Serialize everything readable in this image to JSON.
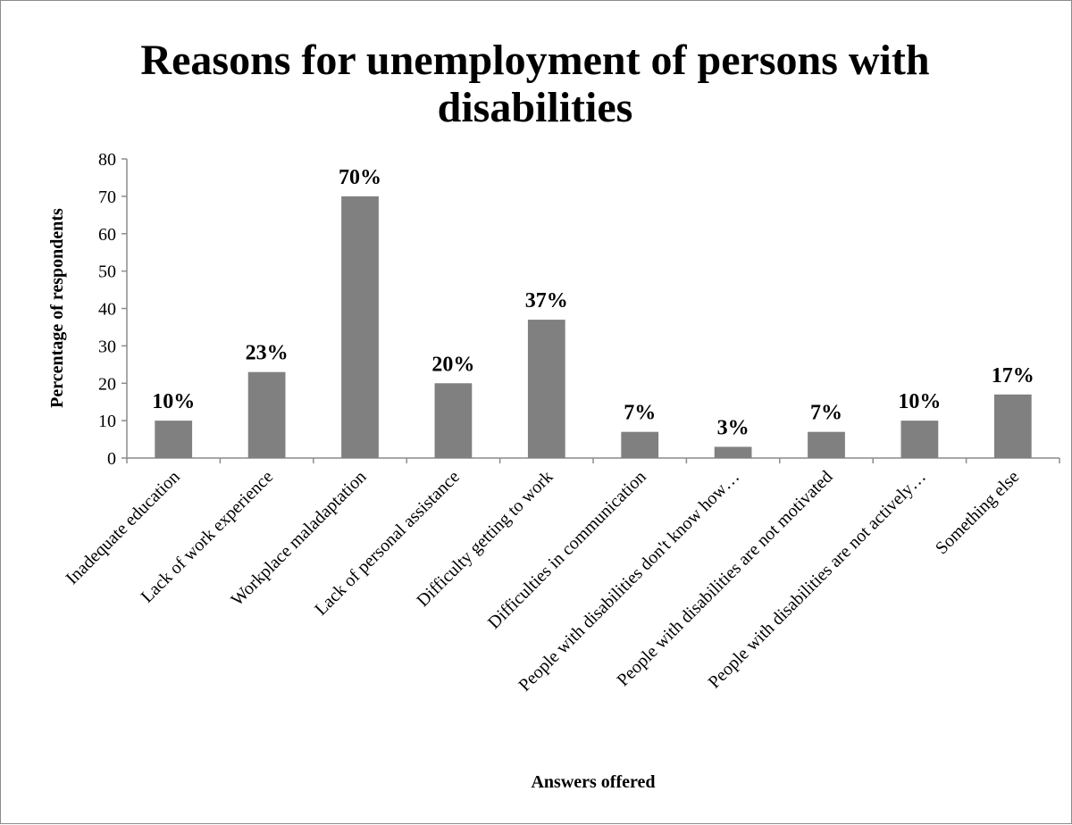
{
  "chart_data": {
    "type": "bar",
    "title_lines": [
      "Reasons for unemployment of persons with",
      "disabilities"
    ],
    "xlabel": "Answers offered",
    "ylabel": "Percentage of respondents",
    "ylim": [
      0,
      80
    ],
    "yticks": [
      0,
      10,
      20,
      30,
      40,
      50,
      60,
      70,
      80
    ],
    "grid": false,
    "legend": "none",
    "bar_color": "#808080",
    "categories": [
      "Inadequate education",
      "Lack of work experience",
      "Workplace maladaptation",
      "Lack of personal assistance",
      "Difficulty getting to work",
      "Difficulties in communication",
      "People with disabilities don't know how…",
      "People with disabilities are not motivated",
      "People with disabilities are not actively…",
      "Something else"
    ],
    "values": [
      10,
      23,
      70,
      20,
      37,
      7,
      3,
      7,
      10,
      17
    ],
    "data_labels": [
      "10%",
      "23%",
      "70%",
      "20%",
      "37%",
      "7%",
      "3%",
      "7%",
      "10%",
      "17%"
    ]
  }
}
